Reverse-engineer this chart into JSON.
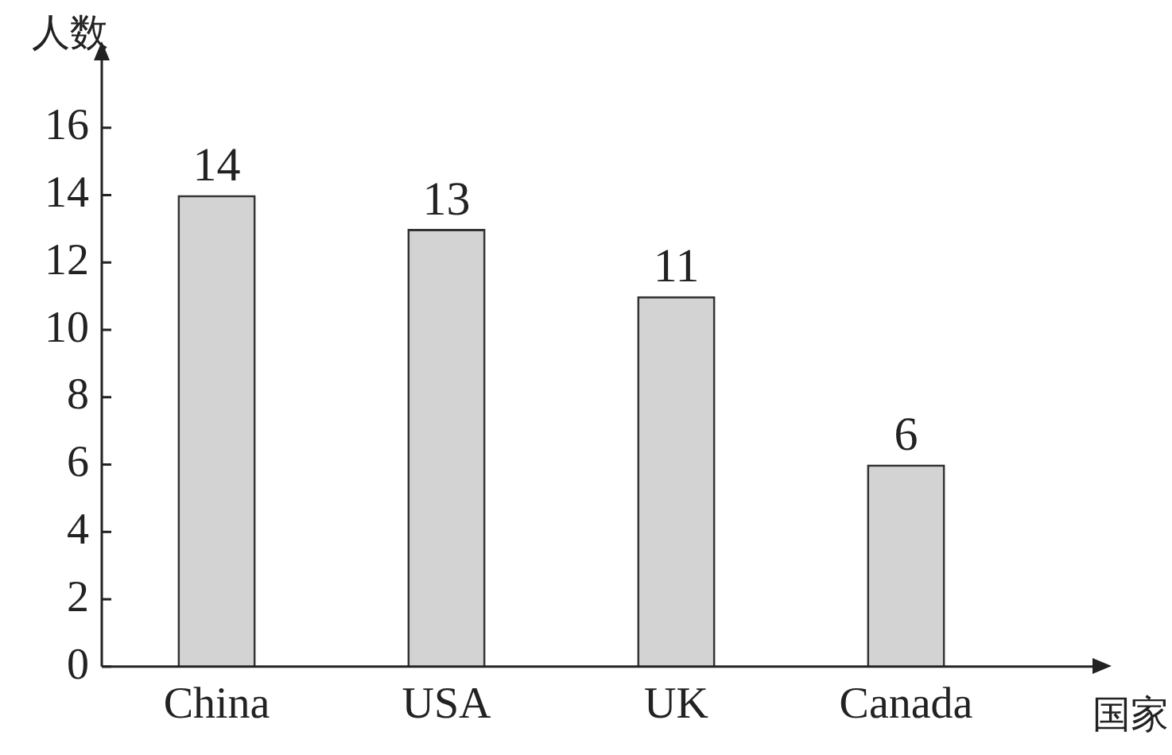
{
  "chart_data": {
    "type": "bar",
    "ylabel": "人数",
    "xlabel": "国家",
    "categories": [
      "China",
      "USA",
      "UK",
      "Canada"
    ],
    "values": [
      14,
      13,
      11,
      6
    ],
    "color": "#d3d3d3",
    "ylim": [
      0,
      18
    ],
    "yticks": [
      0,
      2,
      4,
      6,
      8,
      10,
      12,
      14,
      16
    ],
    "data_labels": true,
    "grid": false,
    "legend": false
  }
}
